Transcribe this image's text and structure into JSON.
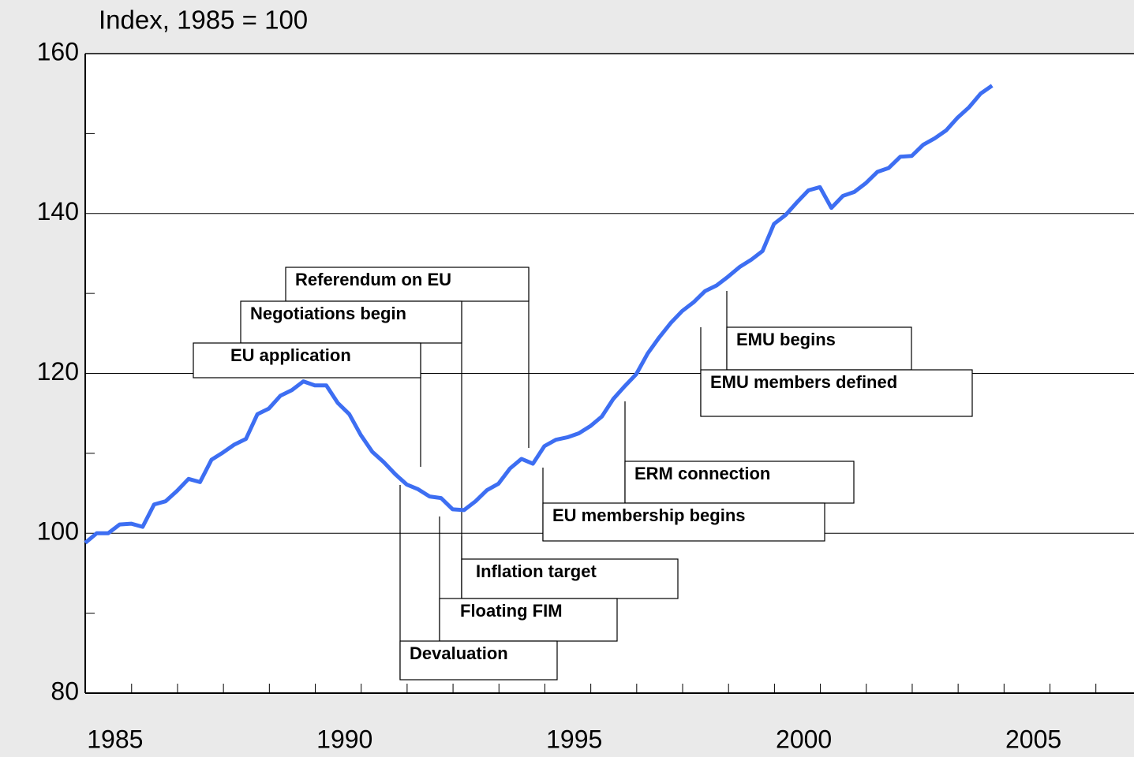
{
  "chart_data": {
    "type": "line",
    "ylabel": "Index, 1985 = 100",
    "x": [
      1984.35,
      1984.6,
      1984.85,
      1985.1,
      1985.35,
      1985.6,
      1985.85,
      1986.1,
      1986.35,
      1986.6,
      1986.85,
      1987.1,
      1987.35,
      1987.6,
      1987.85,
      1988.1,
      1988.35,
      1988.6,
      1988.85,
      1989.1,
      1989.35,
      1989.6,
      1989.85,
      1990.1,
      1990.35,
      1990.6,
      1990.85,
      1991.1,
      1991.35,
      1991.6,
      1991.85,
      1992.1,
      1992.35,
      1992.6,
      1992.85,
      1993.1,
      1993.35,
      1993.6,
      1993.85,
      1994.1,
      1994.35,
      1994.6,
      1994.85,
      1995.1,
      1995.35,
      1995.6,
      1995.85,
      1996.1,
      1996.35,
      1996.6,
      1996.85,
      1997.1,
      1997.35,
      1997.6,
      1997.85,
      1998.1,
      1998.35,
      1998.6,
      1998.85,
      1999.1,
      1999.35,
      1999.6,
      1999.85,
      2000.1,
      2000.35,
      2000.6,
      2000.85,
      2001.1,
      2001.35,
      2001.6,
      2001.85,
      2002.1,
      2002.35,
      2002.6,
      2002.85,
      2003.1,
      2003.35,
      2003.6,
      2003.85,
      2004.1
    ],
    "series": [
      {
        "name": "Index",
        "color": "#3d6ef2",
        "values": [
          98.8,
          100.0,
          100.0,
          101.1,
          101.2,
          100.8,
          103.6,
          104.0,
          105.3,
          106.8,
          106.4,
          109.2,
          110.1,
          111.1,
          111.8,
          114.9,
          115.6,
          117.2,
          117.9,
          119.0,
          118.5,
          118.5,
          116.3,
          114.9,
          112.3,
          110.2,
          108.9,
          107.4,
          106.1,
          105.5,
          104.6,
          104.4,
          103.0,
          102.9,
          104.0,
          105.4,
          106.2,
          108.1,
          109.3,
          108.7,
          110.9,
          111.7,
          112.0,
          112.5,
          113.4,
          114.6,
          116.8,
          118.4,
          119.9,
          122.5,
          124.5,
          126.3,
          127.8,
          128.9,
          130.3,
          131.0,
          132.1,
          133.3,
          134.2,
          135.3,
          138.7,
          139.8,
          141.4,
          142.9,
          143.3,
          140.7,
          142.2,
          142.7,
          143.8,
          145.2,
          145.7,
          147.1,
          147.2,
          148.6,
          149.4,
          150.4,
          152.0,
          153.3,
          155.0,
          156.0
        ]
      }
    ],
    "xlim": [
      1984.35,
      2007.19
    ],
    "xticks": [
      1985,
      1990,
      1995,
      2000,
      2005
    ],
    "xminorticks": [
      1985.36,
      1986.36,
      1987.36,
      1988.36,
      1989.36,
      1990.36,
      1991.36,
      1992.36,
      1993.36,
      1994.36,
      1995.36,
      1996.36,
      1997.36,
      1998.36,
      1999.36,
      2000.36,
      2001.36,
      2002.36,
      2003.36,
      2004.36,
      2005.36,
      2006.36
    ],
    "ylim": [
      80,
      160
    ],
    "yticks": [
      80,
      100,
      120,
      140,
      160
    ],
    "yminorticks": [
      90,
      110,
      130,
      150
    ],
    "grid": true,
    "annotations": [
      "Referendum on EU",
      "Negotiations begin",
      "EU application",
      "EMU begins",
      "EMU members defined",
      "ERM connection",
      "EU membership begins",
      "Inflation target",
      "Floating FIM",
      "Devaluation"
    ]
  }
}
